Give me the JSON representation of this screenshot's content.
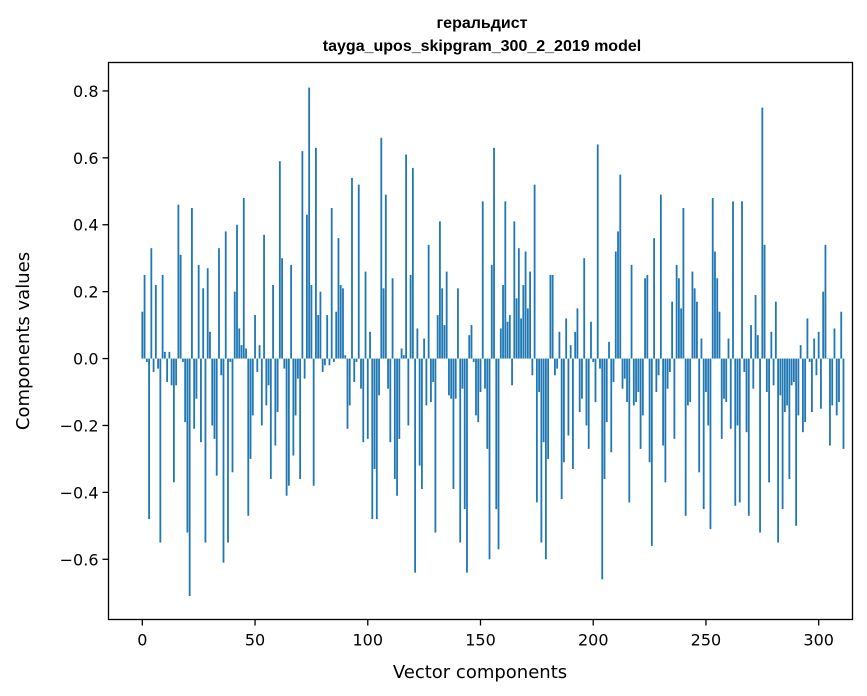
{
  "chart_data": {
    "type": "bar",
    "title": "геральдист",
    "subtitle": "tayga_upos_skipgram_300_2_2019 model",
    "xlabel": "Vector components",
    "ylabel": "Components values",
    "xlim": [
      -15,
      315
    ],
    "ylim": [
      -0.78,
      0.885
    ],
    "xticks": [
      0,
      50,
      100,
      150,
      200,
      250,
      300
    ],
    "xtick_labels": [
      "0",
      "50",
      "100",
      "150",
      "200",
      "250",
      "300"
    ],
    "yticks": [
      -0.6,
      -0.4,
      -0.2,
      0.0,
      0.2,
      0.4,
      0.6,
      0.8
    ],
    "ytick_labels": [
      "−0.6",
      "−0.4",
      "−0.2",
      "0.0",
      "0.2",
      "0.4",
      "0.6",
      "0.8"
    ],
    "grid": false,
    "bar_color": "#1f77b4",
    "values": [
      0.14,
      0.25,
      -0.01,
      -0.48,
      0.33,
      -0.04,
      0.22,
      -0.03,
      -0.55,
      0.25,
      0.02,
      -0.07,
      0.02,
      -0.08,
      -0.37,
      -0.08,
      0.46,
      0.31,
      -0.01,
      -0.19,
      -0.52,
      -0.71,
      0.45,
      -0.21,
      -0.12,
      0.28,
      -0.25,
      0.21,
      -0.55,
      0.27,
      0.08,
      -0.2,
      -0.24,
      -0.35,
      0.33,
      -0.05,
      -0.61,
      0.38,
      -0.55,
      -0.01,
      -0.34,
      0.2,
      0.4,
      0.09,
      0.04,
      0.48,
      0.03,
      -0.47,
      -0.3,
      -0.17,
      0.13,
      -0.04,
      0.04,
      -0.2,
      0.37,
      -0.14,
      -0.08,
      -0.36,
      0.22,
      -0.26,
      -0.16,
      0.59,
      0.3,
      -0.03,
      -0.41,
      -0.38,
      0.28,
      -0.29,
      -0.17,
      -0.06,
      -0.36,
      0.62,
      -0.06,
      0.43,
      0.81,
      0.22,
      -0.38,
      0.63,
      0.13,
      0.2,
      -0.04,
      -0.02,
      0.13,
      -0.02,
      0.45,
      -0.01,
      0.14,
      0.36,
      0.22,
      0.21,
      0.01,
      -0.21,
      -0.14,
      0.54,
      -0.07,
      -0.01,
      0.52,
      -0.09,
      -0.25,
      0.26,
      -0.24,
      0.08,
      -0.48,
      -0.33,
      -0.48,
      -0.11,
      0.66,
      0.21,
      0.49,
      -0.09,
      -0.25,
      0.24,
      -0.36,
      -0.41,
      -0.24,
      0.03,
      0.01,
      0.61,
      -0.2,
      0.25,
      0.57,
      -0.64,
      0.09,
      -0.32,
      -0.39,
      0.06,
      -0.14,
      0.34,
      -0.13,
      -0.07,
      -0.52,
      0.13,
      0.41,
      0.21,
      0.1,
      0.26,
      -0.11,
      -0.12,
      -0.39,
      -0.12,
      0.21,
      -0.55,
      -0.09,
      -0.45,
      -0.64,
      0.07,
      0.1,
      -0.01,
      -0.17,
      -0.19,
      -0.1,
      0.47,
      -0.09,
      -0.27,
      -0.6,
      0.28,
      0.63,
      -0.45,
      -0.57,
      0.09,
      0.22,
      0.47,
      0.11,
      0.13,
      -0.08,
      0.41,
      0.18,
      0.33,
      0.12,
      0.22,
      0.32,
      0.15,
      0.26,
      -0.05,
      0.52,
      -0.43,
      -0.1,
      -0.55,
      -0.25,
      -0.6,
      -0.3,
      0.25,
      0.25,
      -0.05,
      -0.03,
      0.08,
      -0.42,
      -0.31,
      0.12,
      -0.23,
      0.04,
      -0.33,
      0.08,
      0.15,
      -0.16,
      -0.12,
      0.3,
      -0.2,
      -0.27,
      0.11,
      -0.01,
      -0.13,
      0.64,
      -0.03,
      -0.66,
      -0.36,
      -0.19,
      0.05,
      -0.28,
      -0.07,
      0.32,
      0.38,
      0.55,
      -0.09,
      -0.06,
      -0.13,
      -0.43,
      0.28,
      -0.14,
      -0.13,
      -0.1,
      -0.27,
      -0.17,
      0.24,
      0.25,
      -0.31,
      -0.56,
      0.36,
      -0.1,
      -0.05,
      0.49,
      -0.26,
      -0.37,
      -0.09,
      -0.04,
      0.17,
      -0.24,
      0.28,
      0.24,
      0.15,
      0.45,
      -0.47,
      -0.14,
      -0.13,
      0.26,
      0.21,
      0.17,
      -0.34,
      0.06,
      -0.45,
      -0.1,
      -0.2,
      -0.51,
      0.48,
      0.32,
      0.24,
      0.14,
      -0.24,
      -0.12,
      -0.13,
      0.06,
      -0.21,
      0.47,
      -0.44,
      -0.2,
      -0.43,
      0.47,
      -0.04,
      -0.22,
      -0.47,
      0.1,
      -0.09,
      0.19,
      0.07,
      -0.52,
      0.75,
      0.34,
      -0.1,
      -0.37,
      0.08,
      -0.08,
      0.17,
      -0.55,
      -0.11,
      -0.45,
      -0.16,
      -0.14,
      -0.36,
      -0.08,
      -0.07,
      -0.5,
      -0.17,
      0.04,
      -0.22,
      -0.19,
      0.12,
      -0.01,
      -0.16,
      0.06,
      -0.05,
      0.08,
      -0.15,
      0.2,
      0.34,
      0.0,
      -0.26,
      -0.14,
      0.09,
      -0.17,
      -0.13,
      0.14,
      -0.27
    ]
  }
}
